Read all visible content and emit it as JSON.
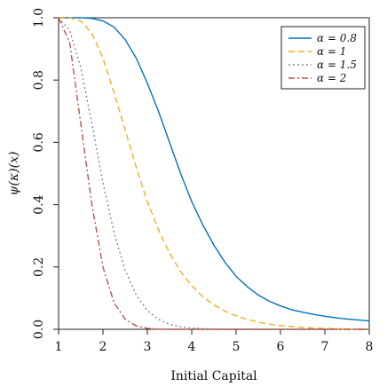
{
  "chart_data": {
    "type": "line",
    "xlabel": "Initial Capital",
    "ylabel": "ψ(κ)(x)",
    "xlim": [
      1,
      8
    ],
    "ylim": [
      0,
      1
    ],
    "xticks": [
      "1",
      "2",
      "3",
      "4",
      "5",
      "6",
      "7",
      "8"
    ],
    "yticks": [
      "0.0",
      "0.2",
      "0.4",
      "0.6",
      "0.8",
      "1.0"
    ],
    "legend_position": "top-right",
    "grid": false,
    "x": [
      1.0,
      1.25,
      1.5,
      1.75,
      2.0,
      2.25,
      2.5,
      2.75,
      3.0,
      3.25,
      3.5,
      3.75,
      4.0,
      4.25,
      4.5,
      4.75,
      5.0,
      5.25,
      5.5,
      5.75,
      6.0,
      6.25,
      6.5,
      6.75,
      7.0,
      7.25,
      7.5,
      7.75,
      8.0
    ],
    "series": [
      {
        "name": "α = 0.8",
        "color": "#0072BD",
        "dash": "solid",
        "values": [
          1.0,
          1.0,
          1.0,
          0.998,
          0.99,
          0.97,
          0.93,
          0.87,
          0.79,
          0.7,
          0.6,
          0.5,
          0.41,
          0.335,
          0.27,
          0.215,
          0.17,
          0.137,
          0.11,
          0.09,
          0.075,
          0.063,
          0.055,
          0.048,
          0.042,
          0.037,
          0.033,
          0.03,
          0.027
        ]
      },
      {
        "name": "α = 1",
        "color": "#EDB120",
        "dash": "dashed",
        "values": [
          1.0,
          1.0,
          0.99,
          0.95,
          0.87,
          0.76,
          0.64,
          0.52,
          0.41,
          0.32,
          0.245,
          0.185,
          0.14,
          0.105,
          0.078,
          0.058,
          0.043,
          0.032,
          0.023,
          0.017,
          0.012,
          0.009,
          0.006,
          0.004,
          0.003,
          0.002,
          0.001,
          0.001,
          0.0
        ]
      },
      {
        "name": "α = 1.5",
        "color": "#888888",
        "dash": "dotted",
        "values": [
          1.0,
          0.96,
          0.84,
          0.66,
          0.47,
          0.31,
          0.19,
          0.11,
          0.06,
          0.032,
          0.016,
          0.008,
          0.004,
          0.002,
          0.001,
          0.0,
          0.0,
          0.0,
          0.0,
          0.0,
          0.0,
          0.0,
          0.0,
          0.0,
          0.0,
          0.0,
          0.0,
          0.0,
          0.0
        ]
      },
      {
        "name": "α = 2",
        "color": "#C0504D",
        "dash": "dashdot",
        "values": [
          1.0,
          0.92,
          0.66,
          0.4,
          0.2,
          0.085,
          0.032,
          0.011,
          0.003,
          0.001,
          0.0,
          0.0,
          0.0,
          0.0,
          0.0,
          0.0,
          0.0,
          0.0,
          0.0,
          0.0,
          0.0,
          0.0,
          0.0,
          0.0,
          0.0,
          0.0,
          0.0,
          0.0,
          0.0
        ]
      }
    ]
  }
}
